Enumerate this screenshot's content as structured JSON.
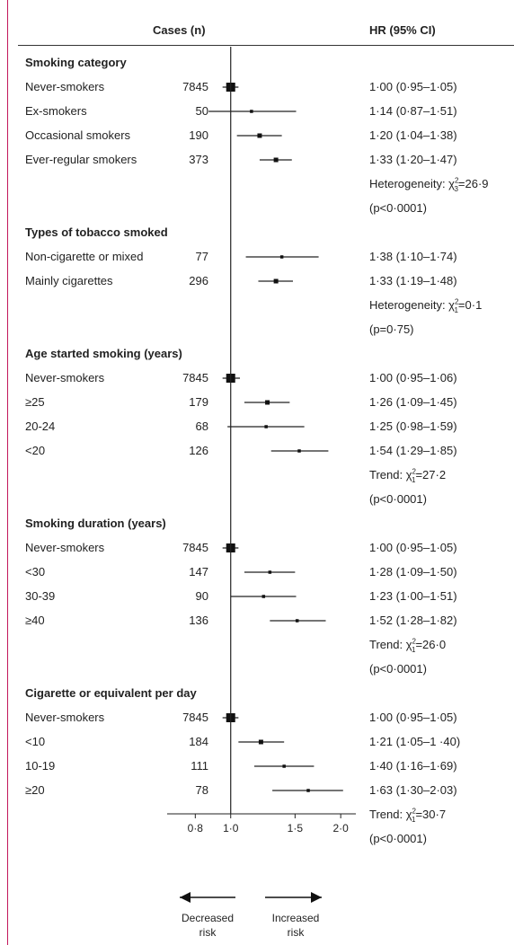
{
  "header": {
    "cases": "Cases (n)",
    "hr": "HR (95% CI)"
  },
  "chart_data": {
    "type": "forest",
    "xscale": "log",
    "xlim": [
      0.67,
      2.2
    ],
    "reference": 1.0,
    "xticks": [
      {
        "value": 0.8,
        "label": "0·8"
      },
      {
        "value": 1.0,
        "label": "1·0"
      },
      {
        "value": 1.5,
        "label": "1·5"
      },
      {
        "value": 2.0,
        "label": "2·0"
      }
    ],
    "sections": [
      {
        "title": "Smoking category",
        "rows": [
          {
            "label": "Never-smokers",
            "cases": "7845",
            "hr": 1.0,
            "lo": 0.95,
            "hi": 1.05,
            "text": "1·00 (0·95–1·05)",
            "ref": true
          },
          {
            "label": "Ex-smokers",
            "cases": "50",
            "hr": 1.14,
            "lo": 0.87,
            "hi": 1.51,
            "text": "1·14 (0·87–1·51)"
          },
          {
            "label": "Occasional smokers",
            "cases": "190",
            "hr": 1.2,
            "lo": 1.04,
            "hi": 1.38,
            "text": "1·20 (1·04–1·38)"
          },
          {
            "label": "Ever-regular smokers",
            "cases": "373",
            "hr": 1.33,
            "lo": 1.2,
            "hi": 1.47,
            "text": "1·33 (1·20–1·47)"
          }
        ],
        "test": {
          "name": "Heterogeneity",
          "df": "3",
          "stat": "26·9",
          "p": "(p<0·0001)"
        }
      },
      {
        "title": "Types of tobacco smoked",
        "rows": [
          {
            "label": "Non-cigarette or mixed",
            "cases": "77",
            "hr": 1.38,
            "lo": 1.1,
            "hi": 1.74,
            "text": "1·38 (1·10–1·74)"
          },
          {
            "label": "Mainly cigarettes",
            "cases": "296",
            "hr": 1.33,
            "lo": 1.19,
            "hi": 1.48,
            "text": "1·33 (1·19–1·48)"
          }
        ],
        "test": {
          "name": "Heterogeneity",
          "df": "1",
          "stat": "0·1",
          "p": "(p=0·75)"
        }
      },
      {
        "title": "Age started smoking (years)",
        "rows": [
          {
            "label": "Never-smokers",
            "cases": "7845",
            "hr": 1.0,
            "lo": 0.95,
            "hi": 1.06,
            "text": "1·00 (0·95–1·06)",
            "ref": true
          },
          {
            "label": "≥25",
            "cases": "179",
            "hr": 1.26,
            "lo": 1.09,
            "hi": 1.45,
            "text": "1·26 (1·09–1·45)"
          },
          {
            "label": "20-24",
            "cases": "68",
            "hr": 1.25,
            "lo": 0.98,
            "hi": 1.59,
            "text": "1·25 (0·98–1·59)"
          },
          {
            "label": "<20",
            "cases": "126",
            "hr": 1.54,
            "lo": 1.29,
            "hi": 1.85,
            "text": "1·54 (1·29–1·85)"
          }
        ],
        "test": {
          "name": "Trend",
          "df": "1",
          "stat": "27·2",
          "p": "(p<0·0001)"
        }
      },
      {
        "title": "Smoking duration (years)",
        "rows": [
          {
            "label": "Never-smokers",
            "cases": "7845",
            "hr": 1.0,
            "lo": 0.95,
            "hi": 1.05,
            "text": "1·00 (0·95–1·05)",
            "ref": true
          },
          {
            "label": "<30",
            "cases": "147",
            "hr": 1.28,
            "lo": 1.09,
            "hi": 1.5,
            "text": "1·28 (1·09–1·50)"
          },
          {
            "label": "30-39",
            "cases": "90",
            "hr": 1.23,
            "lo": 1.0,
            "hi": 1.51,
            "text": "1·23 (1·00–1·51)"
          },
          {
            "label": "≥40",
            "cases": "136",
            "hr": 1.52,
            "lo": 1.28,
            "hi": 1.82,
            "text": "1·52 (1·28–1·82)"
          }
        ],
        "test": {
          "name": "Trend",
          "df": "1",
          "stat": "26·0",
          "p": "(p<0·0001)"
        }
      },
      {
        "title": "Cigarette or equivalent per day",
        "rows": [
          {
            "label": "Never-smokers",
            "cases": "7845",
            "hr": 1.0,
            "lo": 0.95,
            "hi": 1.05,
            "text": "1·00 (0·95–1·05)",
            "ref": true
          },
          {
            "label": "<10",
            "cases": "184",
            "hr": 1.21,
            "lo": 1.05,
            "hi": 1.4,
            "text": "1·21 (1·05–1 ·40)"
          },
          {
            "label": "10-19",
            "cases": "111",
            "hr": 1.4,
            "lo": 1.16,
            "hi": 1.69,
            "text": "1·40 (1·16–1·69)"
          },
          {
            "label": "≥20",
            "cases": "78",
            "hr": 1.63,
            "lo": 1.3,
            "hi": 2.03,
            "text": "1·63 (1·30–2·03)"
          }
        ],
        "test": {
          "name": "Trend",
          "df": "1",
          "stat": "30·7",
          "p": "(p<0·0001)"
        }
      }
    ],
    "risk_labels": {
      "left": [
        "Decreased",
        "risk"
      ],
      "right": [
        "Increased",
        "risk"
      ]
    }
  }
}
